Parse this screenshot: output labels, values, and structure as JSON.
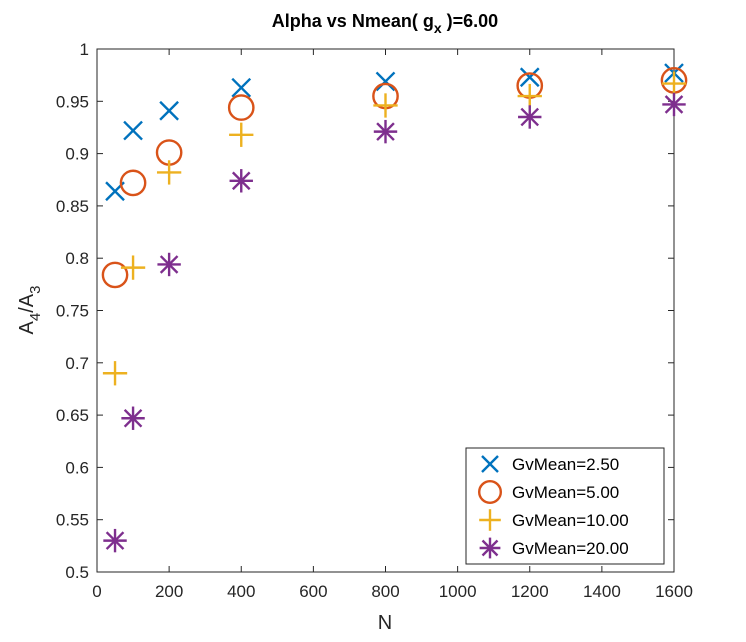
{
  "chart_data": {
    "type": "scatter",
    "title_main": "Alpha vs Nmean( g",
    "title_sub": "x",
    "title_tail": " )=6.00",
    "xlabel": "N",
    "ylabel_main": "A",
    "ylabel_sub1": "4",
    "ylabel_mid": "/A",
    "ylabel_sub2": "3",
    "xlim": [
      0,
      1600
    ],
    "ylim": [
      0.5,
      1.0
    ],
    "xticks": [
      0,
      200,
      400,
      600,
      800,
      1000,
      1200,
      1400,
      1600
    ],
    "yticks": [
      0.5,
      0.55,
      0.6,
      0.65,
      0.7,
      0.75,
      0.8,
      0.85,
      0.9,
      0.95,
      1
    ],
    "xtick_labels": [
      "0",
      "200",
      "400",
      "600",
      "800",
      "1000",
      "1200",
      "1400",
      "1600"
    ],
    "ytick_labels": [
      "0.5",
      "0.55",
      "0.6",
      "0.65",
      "0.7",
      "0.75",
      "0.8",
      "0.85",
      "0.9",
      "0.95",
      "1"
    ],
    "legend_position": "bottom-right",
    "series": [
      {
        "name": "GvMean=2.50",
        "marker": "x",
        "color": "#0072BD",
        "x": [
          50,
          100,
          200,
          400,
          800,
          1200,
          1600
        ],
        "y": [
          0.864,
          0.922,
          0.941,
          0.963,
          0.969,
          0.973,
          0.977
        ]
      },
      {
        "name": "GvMean=5.00",
        "marker": "circle",
        "color": "#D95319",
        "x": [
          50,
          100,
          200,
          400,
          800,
          1200,
          1600
        ],
        "y": [
          0.784,
          0.872,
          0.901,
          0.944,
          0.955,
          0.965,
          0.97
        ]
      },
      {
        "name": "GvMean=10.00",
        "marker": "plus",
        "color": "#EDB120",
        "x": [
          50,
          100,
          200,
          400,
          800,
          1200,
          1600
        ],
        "y": [
          0.69,
          0.791,
          0.882,
          0.918,
          0.946,
          0.955,
          0.967
        ]
      },
      {
        "name": "GvMean=20.00",
        "marker": "asterisk",
        "color": "#7E2F8E",
        "x": [
          50,
          100,
          200,
          400,
          800,
          1200,
          1600
        ],
        "y": [
          0.53,
          0.647,
          0.794,
          0.874,
          0.921,
          0.935,
          0.947
        ]
      }
    ]
  }
}
